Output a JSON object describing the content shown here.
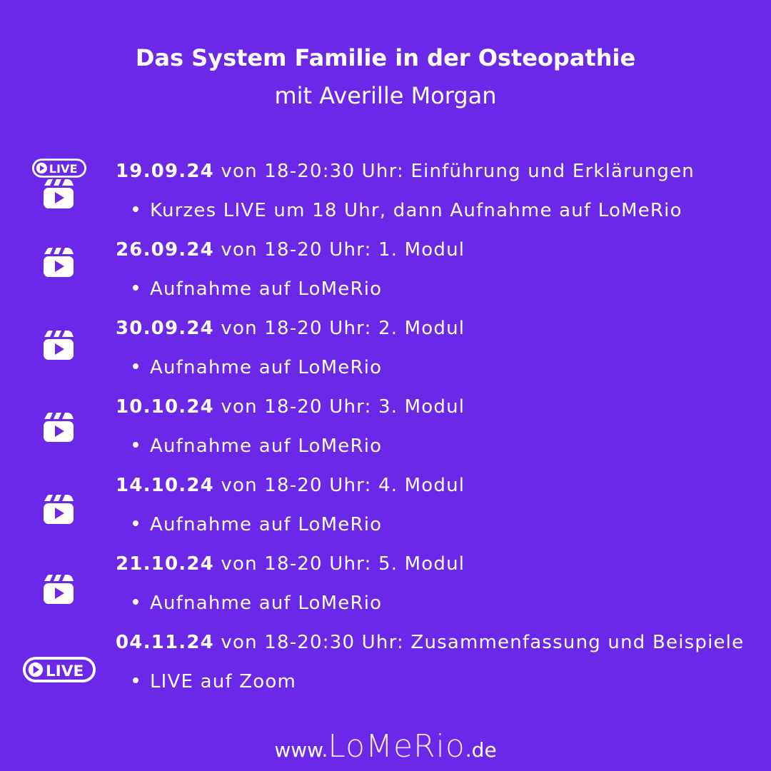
{
  "header": {
    "title": "Das System Familie in der Osteopathie",
    "subtitle": "mit Averille Morgan"
  },
  "colors": {
    "background": "#6c28e8",
    "text": "#ffffff"
  },
  "live_badge_label": "LIVE",
  "sessions": [
    {
      "date": "19.09.24",
      "text": " von 18-20:30 Uhr: Einführung und Erklärungen",
      "note": "Kurzes LIVE um 18 Uhr, dann Aufnahme auf LoMeRio",
      "icons": [
        "live-badge-icon",
        "reels-icon"
      ]
    },
    {
      "date": "26.09.24",
      "text": " von 18-20 Uhr: 1. Modul",
      "note": "Aufnahme auf LoMeRio",
      "icons": [
        "reels-icon"
      ]
    },
    {
      "date": "30.09.24",
      "text": " von 18-20 Uhr: 2. Modul",
      "note": "Aufnahme auf LoMeRio",
      "icons": [
        "reels-icon"
      ]
    },
    {
      "date": "10.10.24",
      "text": " von 18-20 Uhr: 3. Modul",
      "note": "Aufnahme auf LoMeRio",
      "icons": [
        "reels-icon"
      ]
    },
    {
      "date": "14.10.24",
      "text": " von 18-20 Uhr: 4. Modul",
      "note": "Aufnahme auf LoMeRio",
      "icons": [
        "reels-icon"
      ]
    },
    {
      "date": "21.10.24",
      "text": " von 18-20 Uhr: 5. Modul",
      "note": "Aufnahme auf LoMeRio",
      "icons": [
        "reels-icon"
      ]
    },
    {
      "date": "04.11.24",
      "text": " von 18-20:30 Uhr: Zusammenfassung und Beispiele",
      "note": "LIVE auf Zoom",
      "icons": [
        "live-badge-icon"
      ]
    }
  ],
  "footer": {
    "prefix": "www.",
    "logo": "LoMeRio",
    "suffix": ".de"
  }
}
